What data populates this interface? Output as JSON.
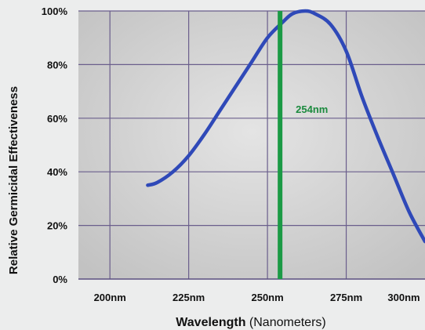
{
  "chart_data": {
    "type": "line",
    "ylabel": "Relative Germicidal Effectiveness",
    "xlabel_main": "Wavelength",
    "xlabel_unit": "(Nanometers)",
    "x_tick_labels": [
      "200nm",
      "225nm",
      "250nm",
      "275nm",
      "300nm"
    ],
    "x_ticks": [
      200,
      225,
      250,
      275,
      300
    ],
    "y_tick_labels": [
      "0%",
      "20%",
      "40%",
      "60%",
      "80%",
      "100%"
    ],
    "y_ticks": [
      0,
      20,
      40,
      60,
      80,
      100
    ],
    "xlim": [
      190,
      300
    ],
    "ylim": [
      0,
      100
    ],
    "grid": true,
    "series": [
      {
        "color": "#2f49b8",
        "x": [
          212,
          215,
          220,
          225,
          230,
          235,
          240,
          245,
          250,
          255,
          258,
          262,
          265,
          270,
          275,
          280,
          285,
          290,
          295,
          300
        ],
        "y": [
          35,
          36,
          40,
          46,
          54,
          63,
          72,
          81,
          90,
          96,
          99,
          100,
          99,
          95,
          85,
          68,
          53,
          39,
          25,
          14
        ]
      }
    ],
    "marker_line": {
      "x": 254,
      "label": "254nm",
      "color": "#1b9a45"
    }
  }
}
